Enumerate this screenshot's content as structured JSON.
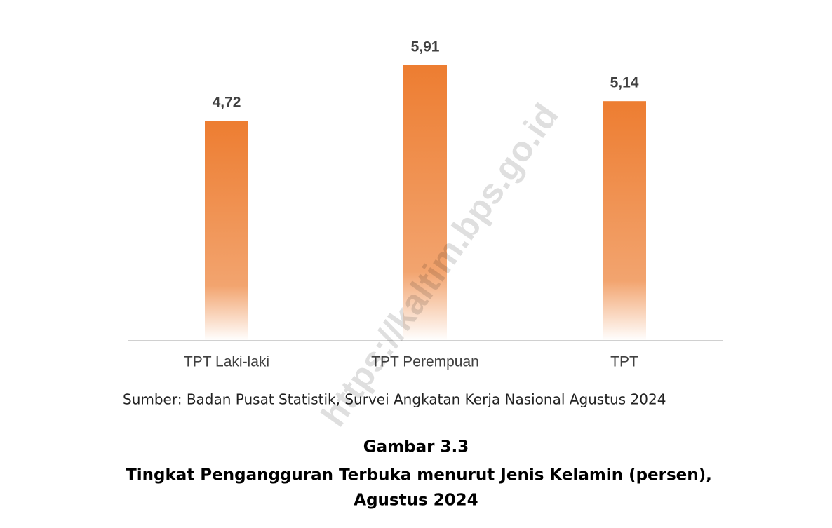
{
  "chart_data": {
    "type": "bar",
    "categories": [
      "TPT Laki-laki",
      "TPT Perempuan",
      "TPT"
    ],
    "values": [
      4.72,
      5.91,
      5.14
    ],
    "value_labels": [
      "4,72",
      "5,91",
      "5,14"
    ],
    "color": "#ed7d31",
    "watermark": "https://kaltim.bps.go.id",
    "source": "Sumber: Badan Pusat Statistik, Survei Angkatan Kerja Nasional Agustus 2024",
    "figure_label": "Gambar 3.3",
    "title_lines": [
      "Tingkat Pengangguran Terbuka menurut Jenis Kelamin (persen),",
      "Agustus 2024"
    ]
  }
}
